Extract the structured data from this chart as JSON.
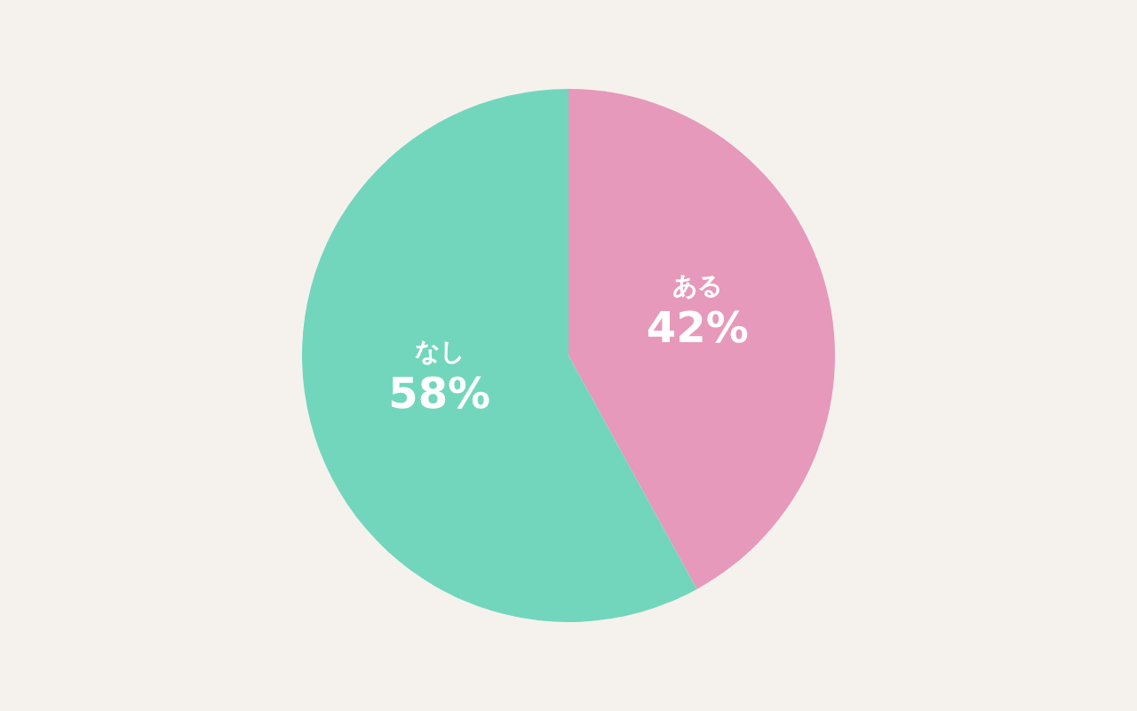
{
  "chart_data": {
    "type": "pie",
    "categories": [
      "ある",
      "なし"
    ],
    "values": [
      42,
      58
    ],
    "colors": [
      "#e699ba",
      "#72d6bd"
    ],
    "value_labels": [
      "42%",
      "58%"
    ]
  }
}
